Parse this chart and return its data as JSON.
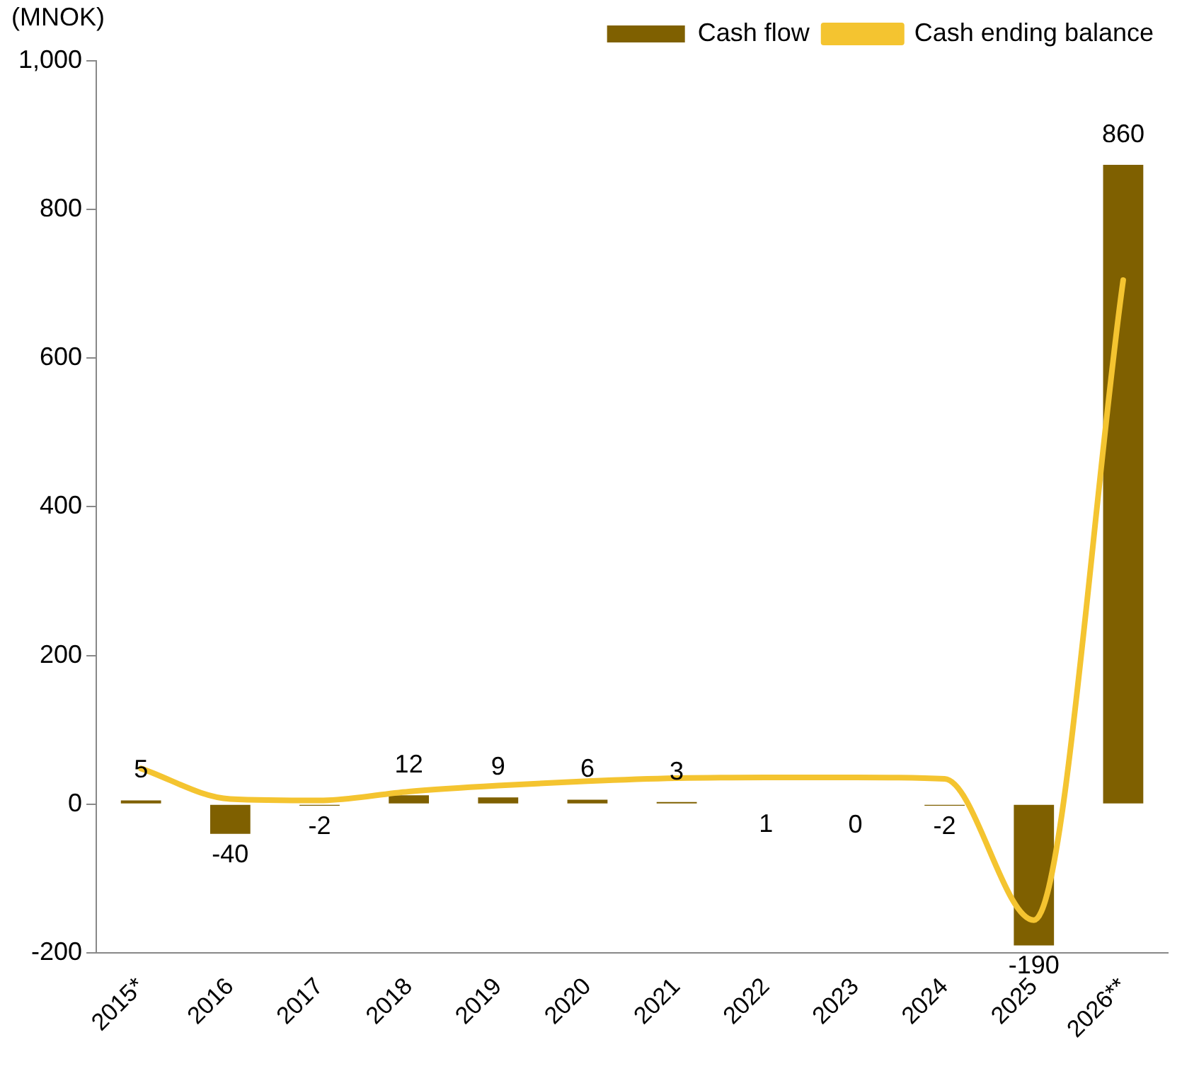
{
  "chart_data": {
    "type": "bar",
    "ylabel": "(MNOK)",
    "categories": [
      "2015*",
      "2016",
      "2017",
      "2018",
      "2019",
      "2020",
      "2021",
      "2022",
      "2023",
      "2024",
      "2025",
      "2026**"
    ],
    "series": [
      {
        "name": "Cash flow",
        "color": "#7f6000",
        "values": [
          5,
          -40,
          -2,
          12,
          9,
          6,
          3,
          1,
          0,
          -2,
          -190,
          860
        ],
        "data_labels": true
      },
      {
        "name": "Cash ending balance",
        "type": "line",
        "color": "#f4c430",
        "values": [
          48,
          7,
          5,
          17,
          25,
          31,
          35,
          36,
          36,
          34,
          -156,
          705
        ],
        "marker": "none"
      }
    ],
    "ylim": [
      -200,
      1000
    ],
    "yticks": [
      -200,
      0,
      200,
      400,
      600,
      800,
      {
        "value": 1000,
        "label": "1,000"
      }
    ],
    "grid": false,
    "legend": "top right"
  }
}
